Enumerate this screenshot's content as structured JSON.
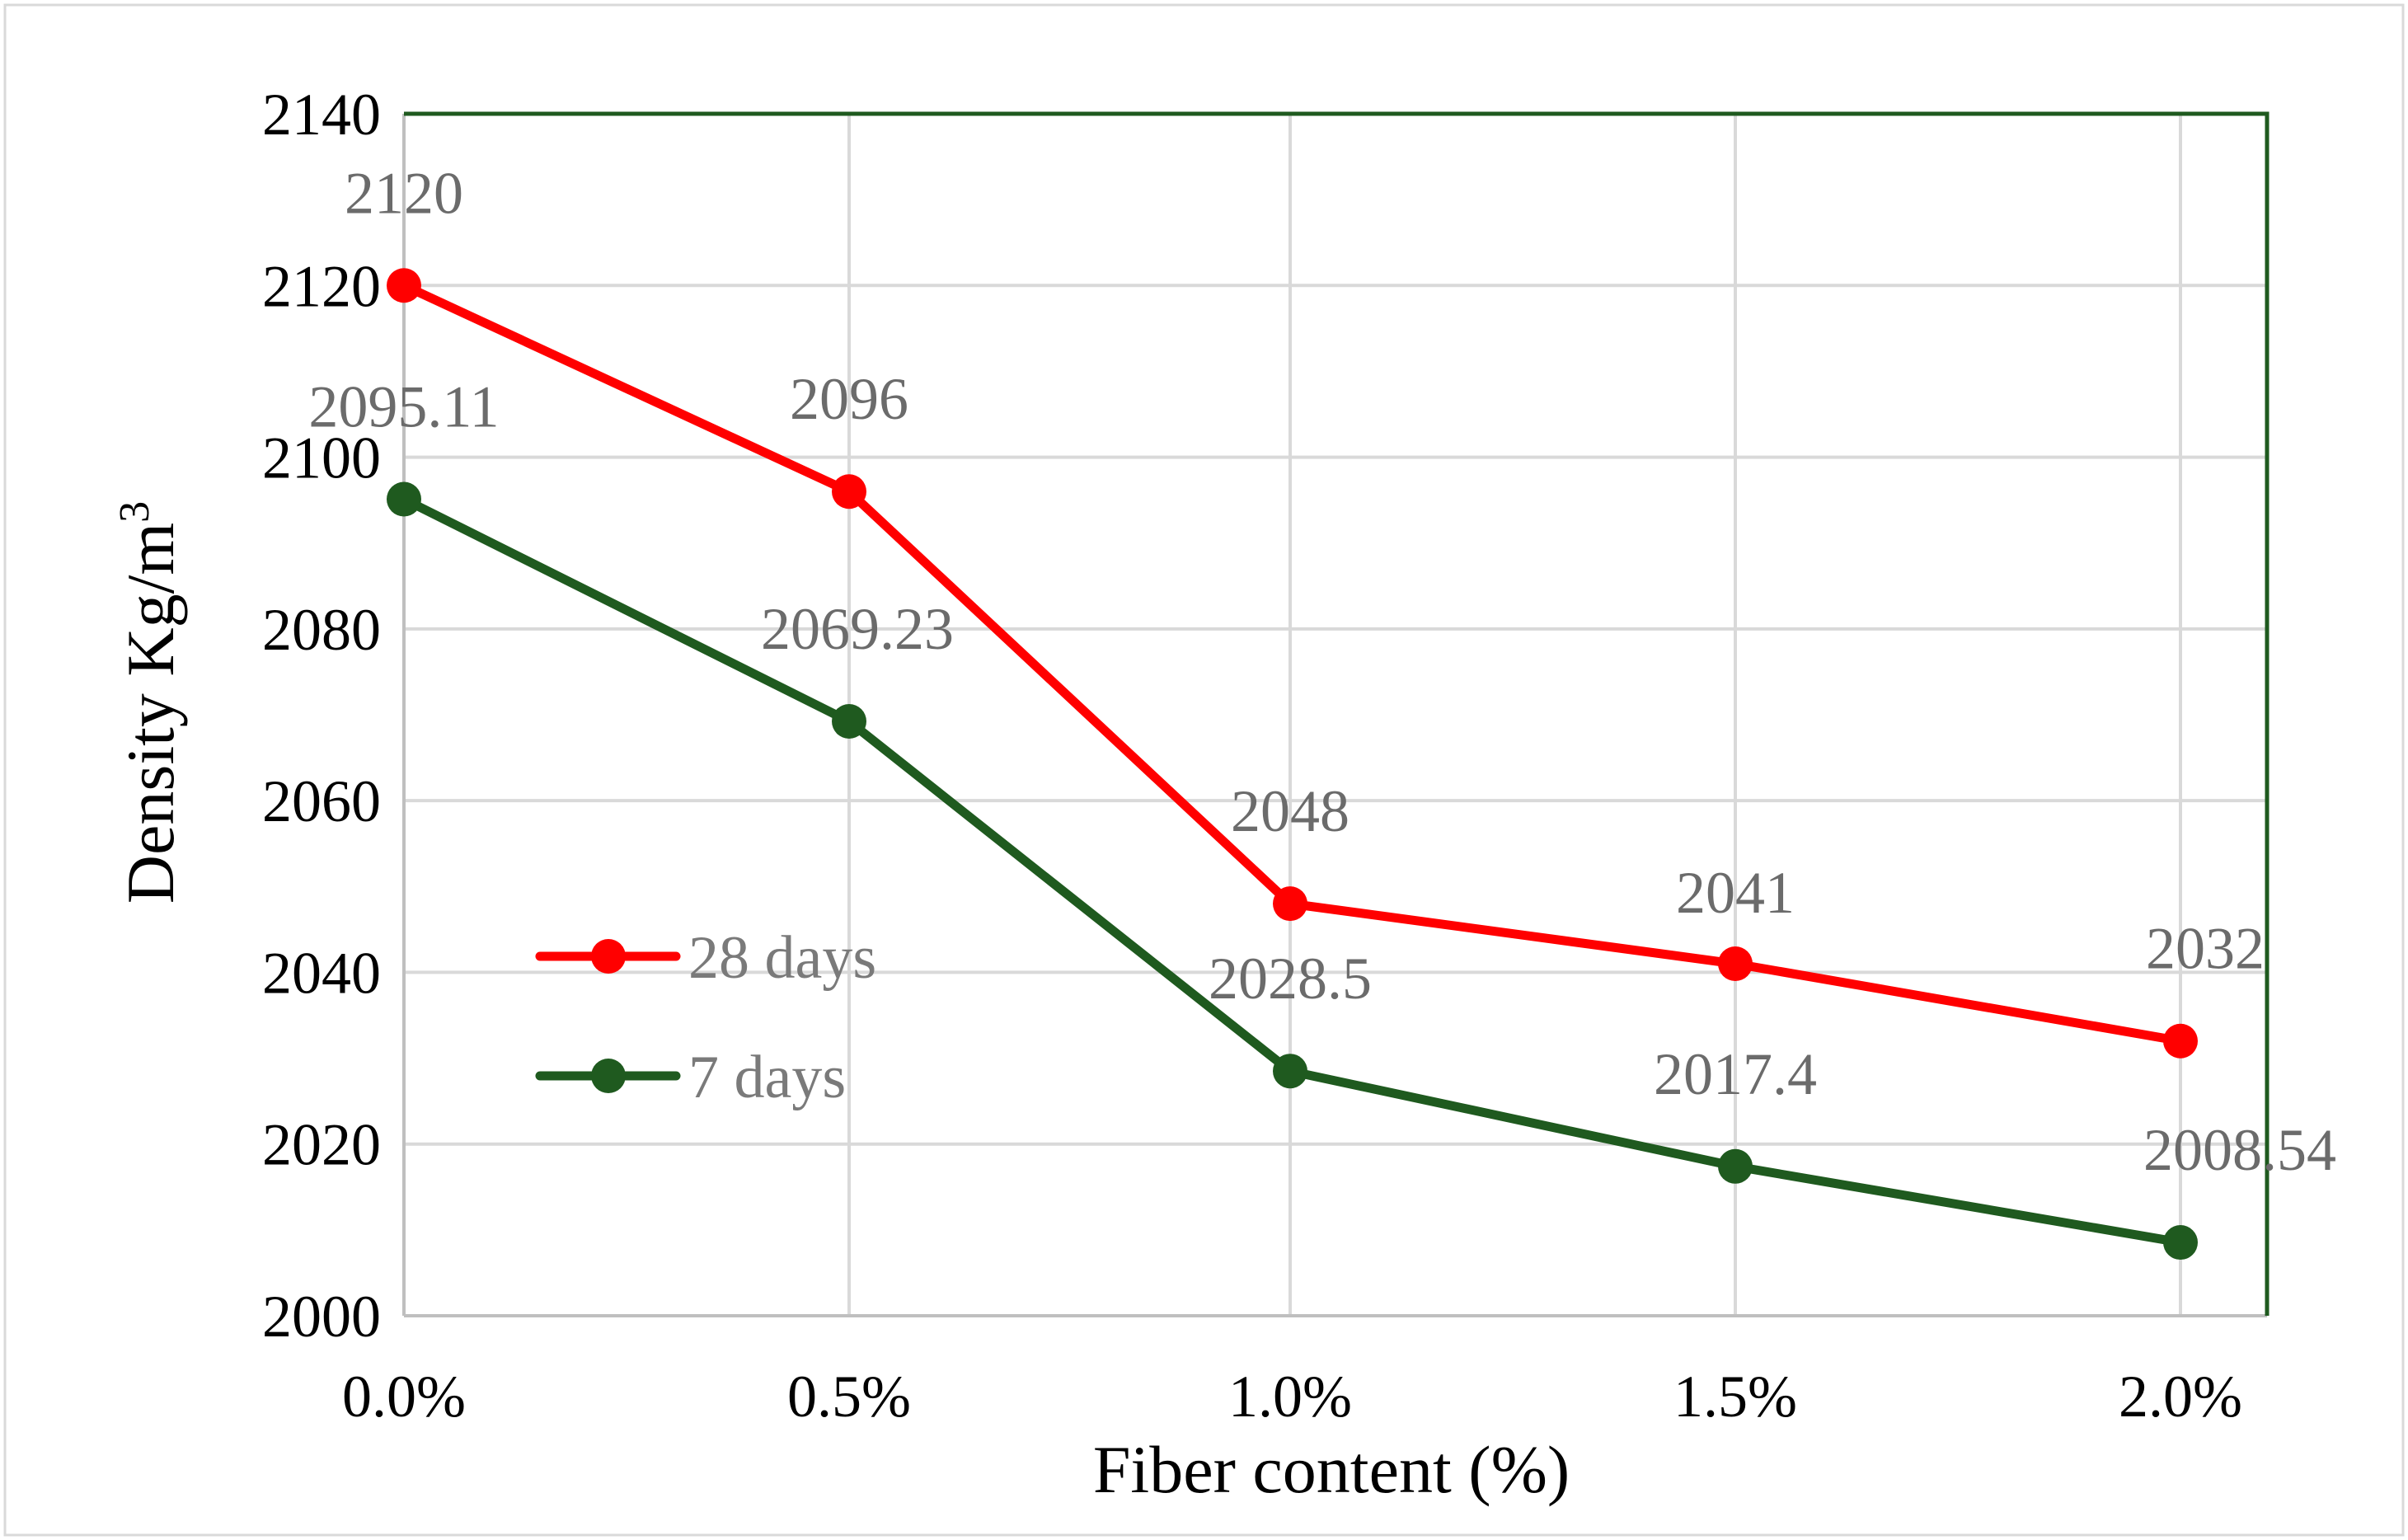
{
  "chart_data": {
    "type": "line",
    "title": "",
    "xlabel": "Fiber content (%)",
    "ylabel_main": "Density Kg/m",
    "ylabel_sup": "3",
    "categories": [
      "0.0%",
      "0.5%",
      "1.0%",
      "1.5%",
      "2.0%"
    ],
    "ylim": [
      2000,
      2140
    ],
    "yticks": [
      2000,
      2020,
      2040,
      2060,
      2080,
      2100,
      2120,
      2140
    ],
    "grid": true,
    "legend_position": "left-center",
    "series": [
      {
        "name": "28 days",
        "color": "#ff0000",
        "values": [
          2120,
          2096,
          2048,
          2041,
          2032
        ],
        "labels": [
          "2120",
          "2096",
          "2048",
          "2041",
          "2032"
        ]
      },
      {
        "name": "7 days",
        "color": "#1f5a1f",
        "values": [
          2095.11,
          2069.23,
          2028.5,
          2017.4,
          2008.54
        ],
        "labels": [
          "2095.11",
          "2069.23",
          "2028.5",
          "2017.4",
          "2008.54"
        ]
      }
    ]
  }
}
